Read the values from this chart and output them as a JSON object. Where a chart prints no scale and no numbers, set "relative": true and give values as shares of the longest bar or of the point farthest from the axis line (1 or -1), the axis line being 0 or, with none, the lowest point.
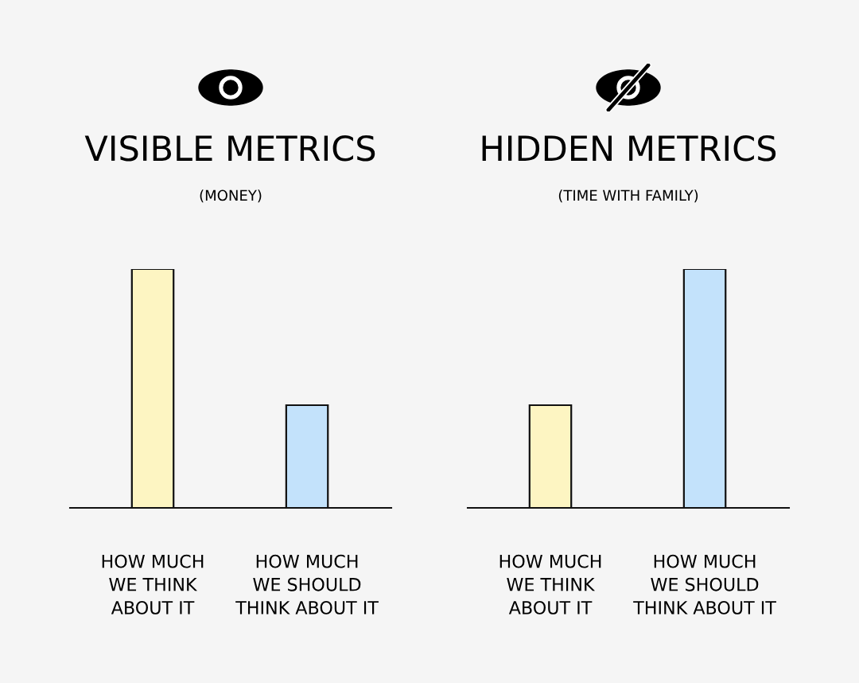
{
  "chart_data": [
    {
      "type": "bar",
      "title": "VISIBLE METRICS",
      "subtitle": "(MONEY)",
      "relative": true,
      "categories": [
        "HOW MUCH\nWE THINK\nABOUT IT",
        "HOW MUCH\nWE SHOULD\nTHINK ABOUT IT"
      ],
      "values": [
        1,
        0.43
      ],
      "colors": [
        "#fdf5c2",
        "#c3e2fb"
      ]
    },
    {
      "type": "bar",
      "title": "HIDDEN METRICS",
      "subtitle": "(TIME WITH FAMILY)",
      "relative": true,
      "categories": [
        "HOW MUCH\nWE THINK\nABOUT IT",
        "HOW MUCH\nWE SHOULD\nTHINK ABOUT IT"
      ],
      "values": [
        0.43,
        1
      ],
      "colors": [
        "#fdf5c2",
        "#c3e2fb"
      ]
    }
  ]
}
